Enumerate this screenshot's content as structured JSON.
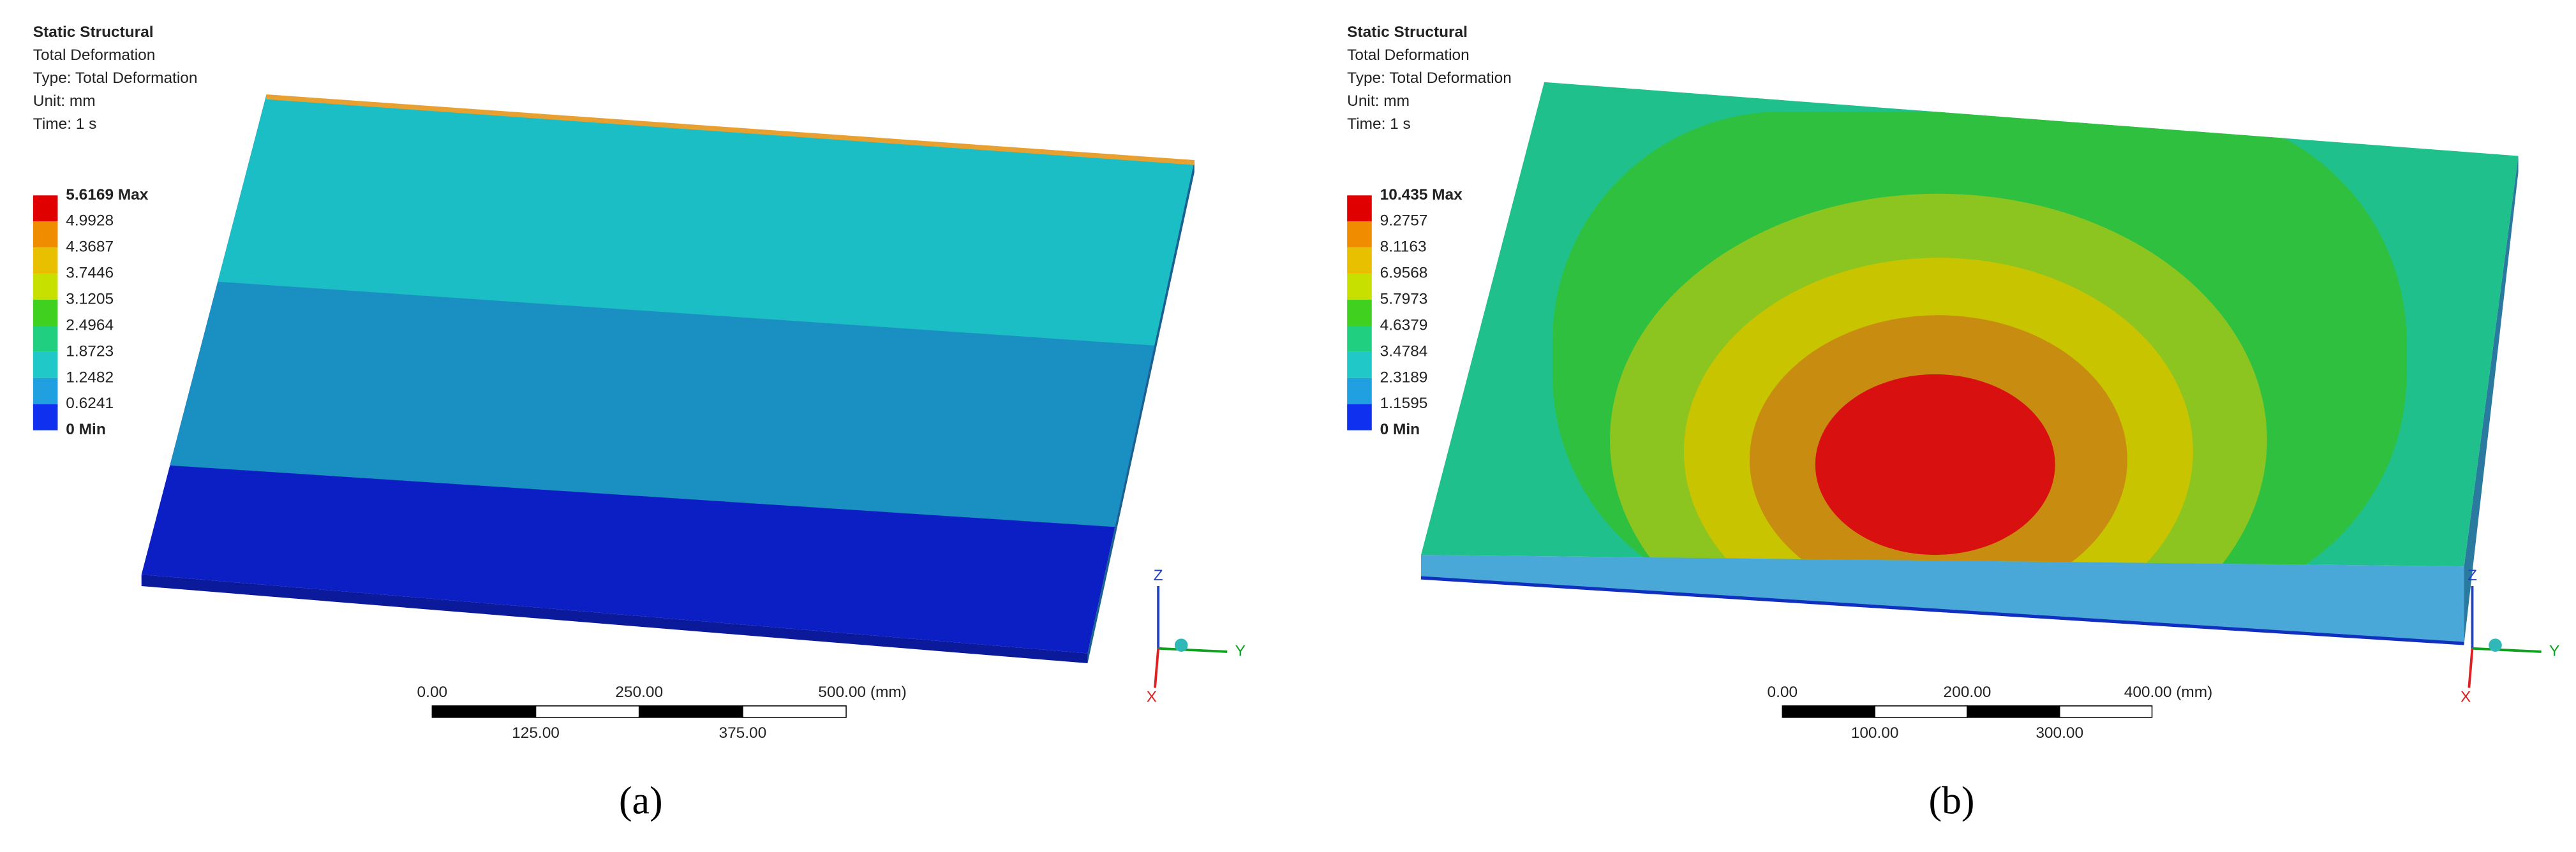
{
  "panels": [
    {
      "header": [
        "Static Structural",
        "Total Deformation",
        "Type: Total Deformation",
        "Unit: mm",
        "Time: 1 s"
      ],
      "legend": [
        "5.6169 Max",
        "4.9928",
        "4.3687",
        "3.7446",
        "3.1205",
        "2.4964",
        "1.8723",
        "1.2482",
        "0.6241",
        "0 Min"
      ],
      "scale_bar": {
        "top": [
          "0.00",
          "250.00",
          "500.00 (mm)"
        ],
        "bottom": [
          "125.00",
          "375.00"
        ]
      },
      "axes": [
        "Z",
        "Y",
        "X"
      ],
      "caption": "(a)"
    },
    {
      "header": [
        "Static Structural",
        "Total Deformation",
        "Type: Total Deformation",
        "Unit: mm",
        "Time: 1 s"
      ],
      "legend": [
        "10.435 Max",
        "9.2757",
        "8.1163",
        "6.9568",
        "5.7973",
        "4.6379",
        "3.4784",
        "2.3189",
        "1.1595",
        "0 Min"
      ],
      "scale_bar": {
        "top": [
          "0.00",
          "200.00",
          "400.00 (mm)"
        ],
        "bottom": [
          "100.00",
          "300.00"
        ]
      },
      "axes": [
        "Z",
        "Y",
        "X"
      ],
      "caption": "(b)"
    }
  ]
}
